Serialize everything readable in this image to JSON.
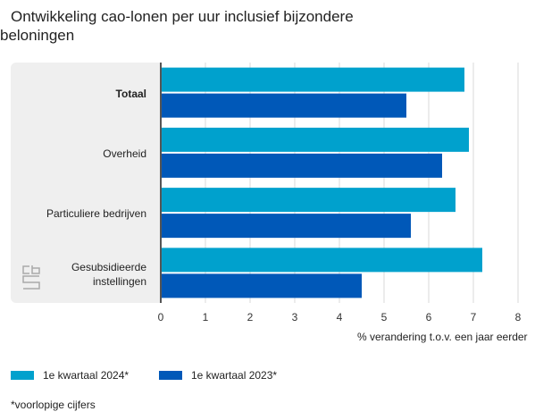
{
  "title_line1": "Ontwikkeling cao-lonen per uur inclusief bijzondere",
  "title_line2": "beloningen",
  "chart_data": {
    "type": "bar",
    "orientation": "horizontal",
    "title": "Ontwikkeling cao-lonen per uur inclusief bijzondere beloningen",
    "categories": [
      "Totaal",
      "Overheid",
      "Particuliere bedrijven",
      "Gesubsidieerde instellingen"
    ],
    "series": [
      {
        "name": "1e kwartaal 2024*",
        "color": "#00a1cd",
        "values": [
          6.8,
          6.9,
          6.6,
          7.2
        ]
      },
      {
        "name": "1e kwartaal 2023*",
        "color": "#0058b8",
        "values": [
          5.5,
          6.3,
          5.6,
          4.5
        ]
      }
    ],
    "xlabel": "% verandering t.o.v. een jaar eerder",
    "xlim": [
      0,
      8
    ],
    "xticks": [
      "0",
      "1",
      "2",
      "3",
      "4",
      "5",
      "6",
      "7",
      "8"
    ],
    "grid": true,
    "legend_position": "bottom-left"
  },
  "footnote": "*voorlopige cijfers",
  "logo": "cbs-logo"
}
